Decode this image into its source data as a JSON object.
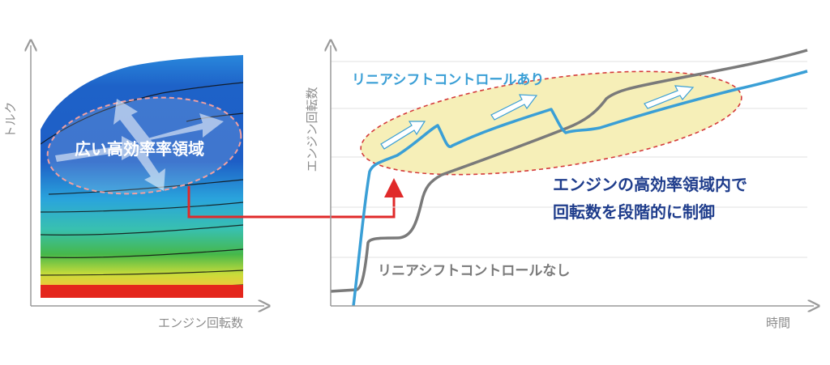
{
  "left_chart": {
    "x_axis_label": "エンジン回転数",
    "y_axis_label": "トルク",
    "region_label": "広い高効率率領域",
    "colors": {
      "high": "#1e5ec6",
      "mid": "#2aa4dc",
      "green": "#46b84a",
      "yellow": "#e8e23a",
      "red": "#e4261c"
    }
  },
  "right_chart": {
    "x_axis_label": "時間",
    "y_axis_label": "エンジン回転数",
    "with_control_label": "リニアシフトコントロールあり",
    "without_control_label": "リニアシフトコントロールなし",
    "annotation_line1": "エンジンの高効率領域内で",
    "annotation_line2": "回転数を段階的に制御",
    "colors": {
      "with": "#3a9fd6",
      "without": "#7a7a7a",
      "annotation": "#1f3d8c",
      "highlight": "#f6efb8",
      "connector": "#e02a2a"
    }
  }
}
